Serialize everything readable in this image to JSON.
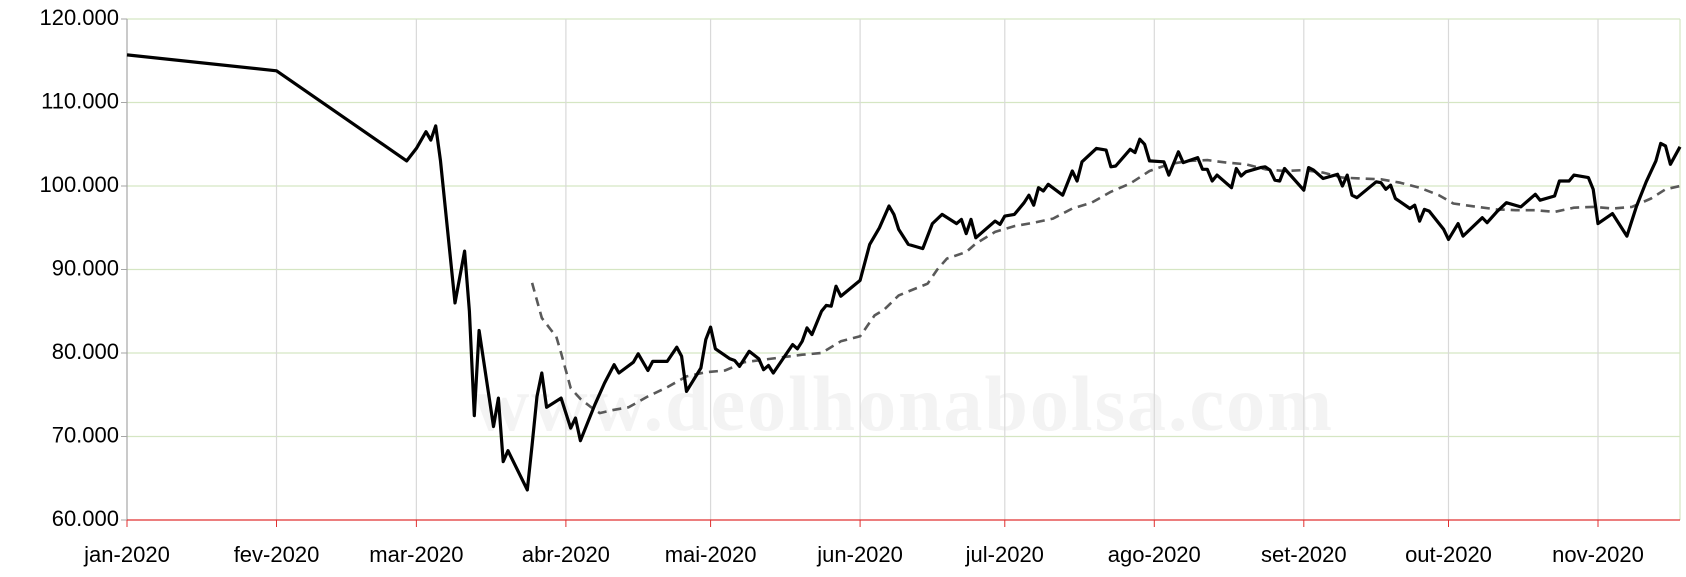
{
  "chart_data": {
    "type": "line",
    "watermark": "www.deolhonabolsa.com",
    "xlim": [
      0,
      322
    ],
    "xticks": [
      {
        "value": 0,
        "label": "jan-2020"
      },
      {
        "value": 31,
        "label": "fev-2020"
      },
      {
        "value": 60,
        "label": "mar-2020"
      },
      {
        "value": 91,
        "label": "abr-2020"
      },
      {
        "value": 121,
        "label": "mai-2020"
      },
      {
        "value": 152,
        "label": "jun-2020"
      },
      {
        "value": 182,
        "label": "jul-2020"
      },
      {
        "value": 213,
        "label": "ago-2020"
      },
      {
        "value": 244,
        "label": "set-2020"
      },
      {
        "value": 274,
        "label": "out-2020"
      },
      {
        "value": 305,
        "label": "nov-2020"
      }
    ],
    "ylim": [
      60000,
      120000
    ],
    "yticks": [
      {
        "value": 60000,
        "label": "60.000"
      },
      {
        "value": 70000,
        "label": "70.000"
      },
      {
        "value": 80000,
        "label": "80.000"
      },
      {
        "value": 90000,
        "label": "90.000"
      },
      {
        "value": 100000,
        "label": "100.000"
      },
      {
        "value": 110000,
        "label": "110.000"
      },
      {
        "value": 120000,
        "label": "120.000"
      }
    ],
    "grid": true,
    "series": [
      {
        "color": "#000000",
        "dashed": false,
        "x": [
          0,
          31,
          58,
          60,
          62,
          63,
          64,
          65,
          68,
          70,
          71,
          72,
          73,
          76,
          77,
          78,
          79,
          83,
          84,
          85,
          86,
          87,
          90,
          92,
          93,
          94,
          97,
          99,
          101,
          102,
          105,
          106,
          108,
          109,
          112,
          114,
          115,
          116,
          119,
          120,
          121,
          122,
          125,
          126,
          127,
          129,
          131,
          132,
          133,
          134,
          138,
          139,
          140,
          141,
          142,
          144,
          145,
          146,
          147,
          148,
          152,
          154,
          156,
          158,
          159,
          160,
          162,
          165,
          167,
          169,
          172,
          173,
          174,
          175,
          176,
          180,
          181,
          182,
          184,
          186,
          187,
          188,
          189,
          190,
          191,
          194,
          196,
          197,
          198,
          201,
          203,
          204,
          205,
          208,
          209,
          210,
          211,
          212,
          215,
          216,
          218,
          219,
          222,
          223,
          224,
          225,
          226,
          229,
          230,
          231,
          232,
          235,
          236,
          237,
          238,
          239,
          240,
          244,
          245,
          246,
          248,
          251,
          252,
          253,
          254,
          255,
          259,
          260,
          261,
          262,
          263,
          266,
          267,
          268,
          269,
          270,
          273,
          274,
          276,
          277,
          281,
          282,
          284,
          286,
          289,
          292,
          293,
          296,
          297,
          299,
          300,
          303,
          304,
          305,
          308,
          311,
          313,
          315,
          317,
          318,
          319,
          320,
          322
        ],
        "values": [
          115700,
          113800,
          103000,
          104500,
          106500,
          105500,
          107200,
          103000,
          86000,
          92200,
          85000,
          72500,
          82700,
          71200,
          74600,
          67000,
          68300,
          63600,
          69000,
          74800,
          77600,
          73500,
          74600,
          71000,
          72200,
          69500,
          73800,
          76400,
          78600,
          77600,
          78900,
          79900,
          77900,
          79000,
          79000,
          80700,
          79600,
          75400,
          78200,
          81600,
          83100,
          80500,
          79300,
          79100,
          78400,
          80200,
          79300,
          78000,
          78500,
          77600,
          81000,
          80500,
          81400,
          83000,
          82200,
          85000,
          85700,
          85600,
          88000,
          86800,
          88700,
          93000,
          95000,
          97600,
          96600,
          94800,
          93000,
          92500,
          95500,
          96600,
          95500,
          96000,
          94300,
          96000,
          93800,
          95800,
          95400,
          96400,
          96600,
          98000,
          98900,
          97700,
          99800,
          99400,
          100200,
          98900,
          101800,
          100600,
          102900,
          104500,
          104300,
          102300,
          102400,
          104400,
          104000,
          105600,
          105000,
          103000,
          102900,
          101300,
          104100,
          102800,
          103400,
          102000,
          102000,
          100600,
          101300,
          99800,
          102100,
          101200,
          101700,
          102200,
          102300,
          101900,
          100700,
          100600,
          102100,
          99500,
          102200,
          101900,
          100900,
          101400,
          100000,
          101300,
          98900,
          98600,
          100500,
          100400,
          99600,
          100100,
          98500,
          97300,
          97700,
          95800,
          97200,
          97000,
          94800,
          93600,
          95500,
          94000,
          96200,
          95600,
          96900,
          98000,
          97500,
          99000,
          98300,
          98800,
          100600,
          100600,
          101300,
          101000,
          99600,
          95500,
          96700,
          94000,
          97600,
          100500,
          103000,
          105100,
          104800,
          102600,
          104700
        ]
      },
      {
        "color": "#595959",
        "dashed": true,
        "x": [
          84,
          86,
          88,
          89,
          90,
          92,
          94,
          96,
          98,
          101,
          104,
          108,
          112,
          116,
          120,
          124,
          128,
          132,
          136,
          140,
          144,
          148,
          152,
          155,
          157,
          160,
          163,
          166,
          168,
          170,
          174,
          176,
          180,
          184,
          188,
          192,
          196,
          200,
          204,
          208,
          212,
          216,
          220,
          224,
          228,
          232,
          236,
          240,
          244,
          248,
          252,
          256,
          260,
          264,
          268,
          272,
          275,
          280,
          284,
          288,
          292,
          296,
          300,
          304,
          308,
          312,
          316,
          319,
          322
        ],
        "values": [
          88400,
          84200,
          82700,
          82000,
          80000,
          75800,
          74500,
          73600,
          72800,
          73200,
          73500,
          74800,
          75900,
          77200,
          77700,
          77900,
          78900,
          79200,
          79500,
          79800,
          80000,
          81400,
          82000,
          84500,
          85200,
          86900,
          87600,
          88300,
          90000,
          91300,
          92100,
          93100,
          94500,
          95200,
          95600,
          96100,
          97300,
          98000,
          99300,
          100300,
          101800,
          102600,
          103000,
          103100,
          102800,
          102600,
          102000,
          101800,
          101900,
          101600,
          101000,
          100900,
          100800,
          100400,
          99800,
          98900,
          97900,
          97500,
          97200,
          97100,
          97100,
          96900,
          97400,
          97500,
          97300,
          97500,
          98500,
          99600,
          100000
        ]
      }
    ]
  }
}
